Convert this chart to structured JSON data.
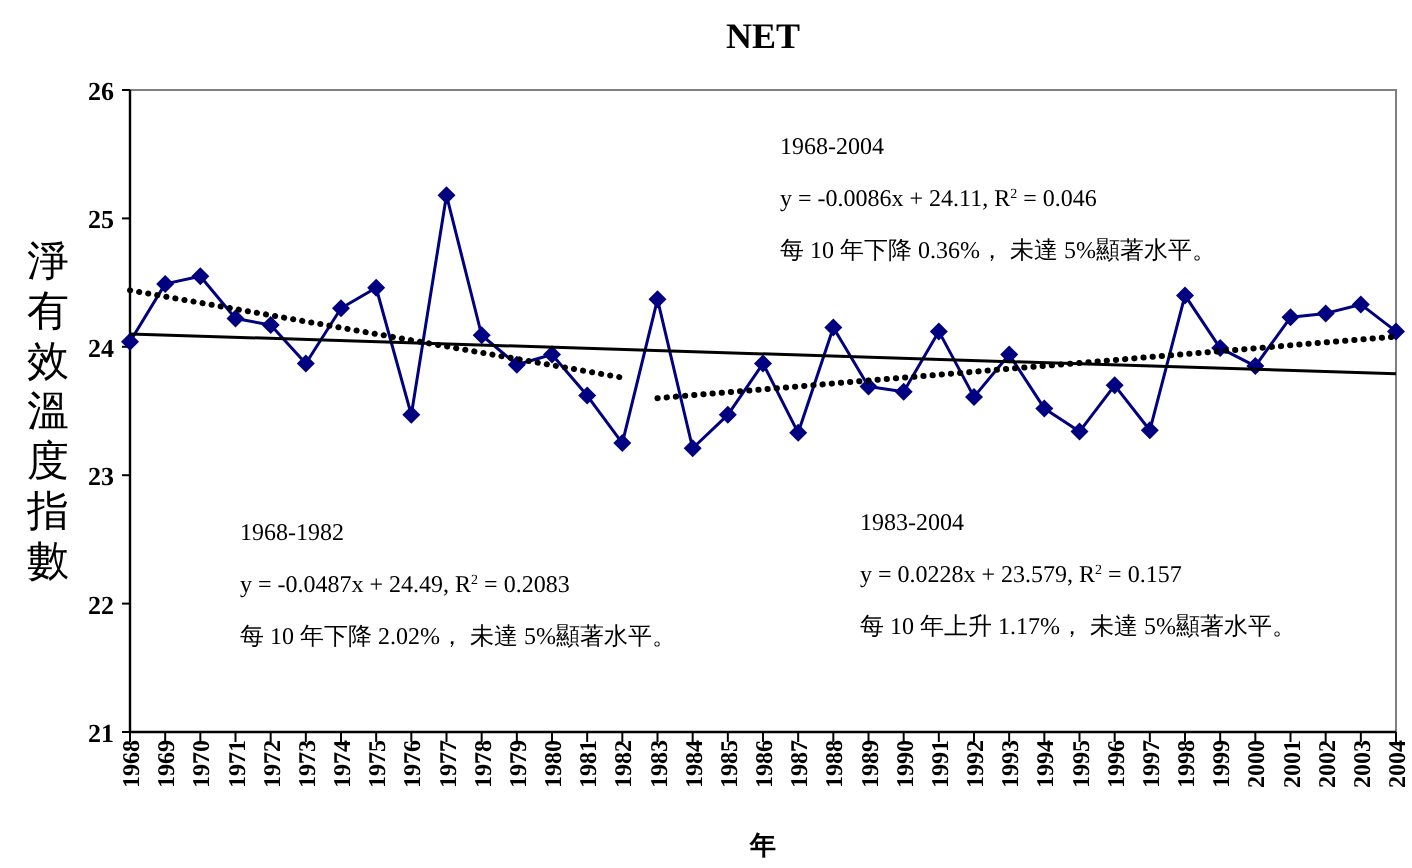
{
  "chart_data": {
    "type": "line",
    "title": "NET",
    "xlabel": "年",
    "ylabel": "淨有效溫度指數",
    "categories": [
      "1968",
      "1969",
      "1970",
      "1971",
      "1972",
      "1973",
      "1974",
      "1975",
      "1976",
      "1977",
      "1978",
      "1979",
      "1980",
      "1981",
      "1982",
      "1983",
      "1984",
      "1985",
      "1986",
      "1987",
      "1988",
      "1989",
      "1990",
      "1991",
      "1992",
      "1993",
      "1994",
      "1995",
      "1996",
      "1997",
      "1998",
      "1999",
      "2000",
      "2001",
      "2002",
      "2003",
      "2004"
    ],
    "series": [
      {
        "color": "#000080",
        "marker": "diamond",
        "line_style": "solid",
        "values": [
          24.04,
          24.49,
          24.55,
          24.22,
          24.17,
          23.87,
          24.3,
          24.46,
          23.47,
          25.18,
          24.09,
          23.86,
          23.94,
          23.62,
          23.25,
          24.37,
          23.21,
          23.47,
          23.87,
          23.33,
          24.15,
          23.69,
          23.65,
          24.12,
          23.61,
          23.94,
          23.52,
          23.34,
          23.7,
          23.35,
          24.4,
          23.99,
          23.85,
          24.23,
          24.26,
          24.33,
          24.12
        ]
      },
      {
        "type": "line",
        "color": "#000000",
        "marker": "none",
        "line_style": "solid",
        "values": [
          24.1,
          null,
          null,
          null,
          null,
          null,
          null,
          null,
          null,
          null,
          null,
          null,
          null,
          null,
          null,
          null,
          null,
          null,
          null,
          null,
          null,
          null,
          null,
          null,
          null,
          null,
          null,
          null,
          null,
          null,
          null,
          null,
          null,
          null,
          null,
          null,
          23.79
        ]
      },
      {
        "type": "line",
        "color": "#000000",
        "marker": "none",
        "line_style": "dotted",
        "values": [
          24.44,
          null,
          null,
          null,
          null,
          null,
          null,
          null,
          null,
          null,
          null,
          null,
          null,
          null,
          23.76,
          null,
          null,
          null,
          null,
          null,
          null,
          null,
          null,
          null,
          null,
          null,
          null,
          null,
          null,
          null,
          null,
          null,
          null,
          null,
          null,
          null,
          null
        ]
      },
      {
        "type": "line",
        "color": "#000000",
        "marker": "none",
        "line_style": "dotted",
        "values": [
          null,
          null,
          null,
          null,
          null,
          null,
          null,
          null,
          null,
          null,
          null,
          null,
          null,
          null,
          null,
          23.6,
          null,
          null,
          null,
          null,
          null,
          null,
          null,
          null,
          null,
          null,
          null,
          null,
          null,
          null,
          null,
          null,
          null,
          null,
          null,
          null,
          24.08
        ]
      }
    ],
    "ylim": [
      21,
      26
    ],
    "yticks": [
      21,
      22,
      23,
      24,
      25,
      26
    ],
    "grid": false,
    "annotations": [
      "1968-2004",
      "y = -0.0086x + 24.11, R$^{2}$ = 0.046",
      "每 10 年下降 0.36%， 未達 5%顯著水平。",
      "1968-1982",
      "y = -0.0487x + 24.49, R$^{2}$ = 0.2083",
      "每 10 年下降 2.02%， 未達 5%顯著水平。",
      "1983-2004",
      "y = 0.0228x + 23.579, R$^{2}$ = 0.157",
      "每 10 年上升 1.17%， 未達 5%顯著水平。"
    ]
  }
}
